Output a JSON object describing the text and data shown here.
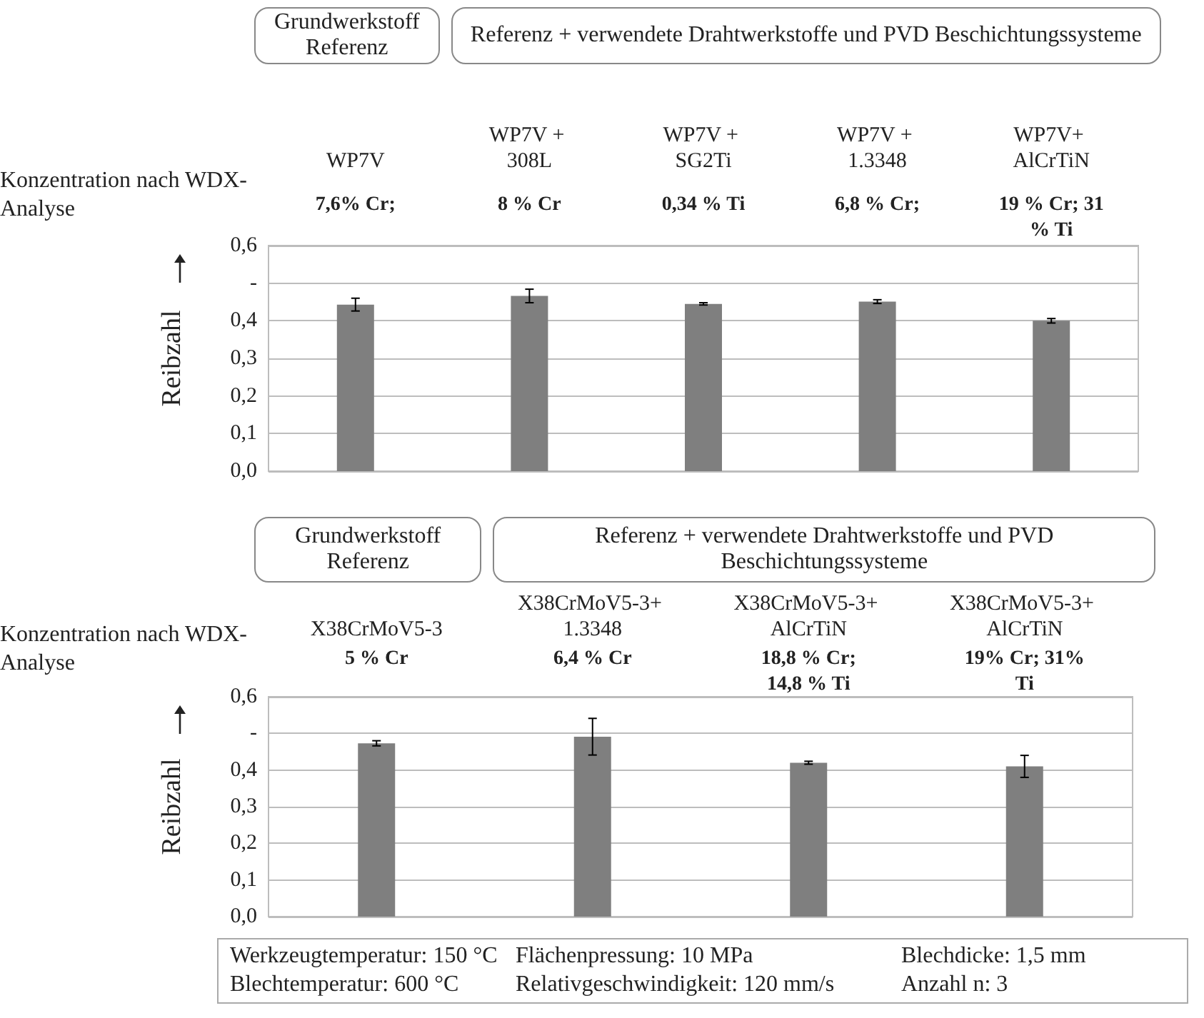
{
  "chart_data": [
    {
      "type": "bar",
      "ylabel": "Reibzahl",
      "categories": [
        "WP7V",
        "WP7V + 308L",
        "WP7V + SG2Ti",
        "WP7V + 1.3348",
        "WP7V+ AlCrTiN"
      ],
      "values": [
        0.443,
        0.466,
        0.445,
        0.451,
        0.4
      ],
      "errors": [
        0.017,
        0.018,
        0.003,
        0.005,
        0.006
      ],
      "color": "#7f7f7f",
      "ylim": [
        0,
        0.6
      ],
      "yticks": [
        {
          "value": 0,
          "label": "0,0"
        },
        {
          "value": 0.1,
          "label": "0,1"
        },
        {
          "value": 0.2,
          "label": "0,2"
        },
        {
          "value": 0.3,
          "label": "0,3"
        },
        {
          "value": 0.4,
          "label": "0,4"
        },
        {
          "value": 0.5,
          "label": "-"
        },
        {
          "value": 0.6,
          "label": "0,6"
        }
      ],
      "grid": "y",
      "annotations": [
        "Grundwerkstoff Referenz",
        "Referenz + verwendete Drahtwerkstoffe und PVD Beschichtungssysteme",
        "Konzentration nach WDX- Analyse",
        "7,6% Cr;",
        "8 % Cr",
        "0,34 % Ti",
        "6,8 % Cr;",
        "19 % Cr; 31 % Ti"
      ]
    },
    {
      "type": "bar",
      "ylabel": "Reibzahl",
      "categories": [
        "X38CrMoV5-3",
        "X38CrMoV5-3+ 1.3348",
        "X38CrMoV5-3+ AlCrTiN",
        "X38CrMoV5-3+ AlCrTiN"
      ],
      "values": [
        0.473,
        0.491,
        0.42,
        0.41
      ],
      "errors": [
        0.007,
        0.05,
        0.004,
        0.03
      ],
      "color": "#7f7f7f",
      "ylim": [
        0,
        0.6
      ],
      "yticks": [
        {
          "value": 0,
          "label": "0,0"
        },
        {
          "value": 0.1,
          "label": "0,1"
        },
        {
          "value": 0.2,
          "label": "0,2"
        },
        {
          "value": 0.3,
          "label": "0,3"
        },
        {
          "value": 0.4,
          "label": "0,4"
        },
        {
          "value": 0.5,
          "label": "-"
        },
        {
          "value": 0.6,
          "label": "0,6"
        }
      ],
      "grid": "y",
      "annotations": [
        "Grundwerkstoff Referenz",
        "Referenz + verwendete Drahtwerkstoffe und PVD Beschichtungssysteme",
        "Konzentration nach WDX- Analyse",
        "5 % Cr",
        "6,4 % Cr",
        "18,8 % Cr; 14,8 % Ti",
        "19% Cr; 31% Ti"
      ]
    },
    {
      "type": "other",
      "annotations": [
        "Werkzeugtemperatur: 150 °C",
        "Flächenpressung: 10 MPa",
        "Blechdicke: 1,5 mm",
        "Blechtemperatur: 600 °C",
        "Relativgeschwindigkeit: 120 mm/s",
        "Anzahl n: 3"
      ]
    }
  ]
}
